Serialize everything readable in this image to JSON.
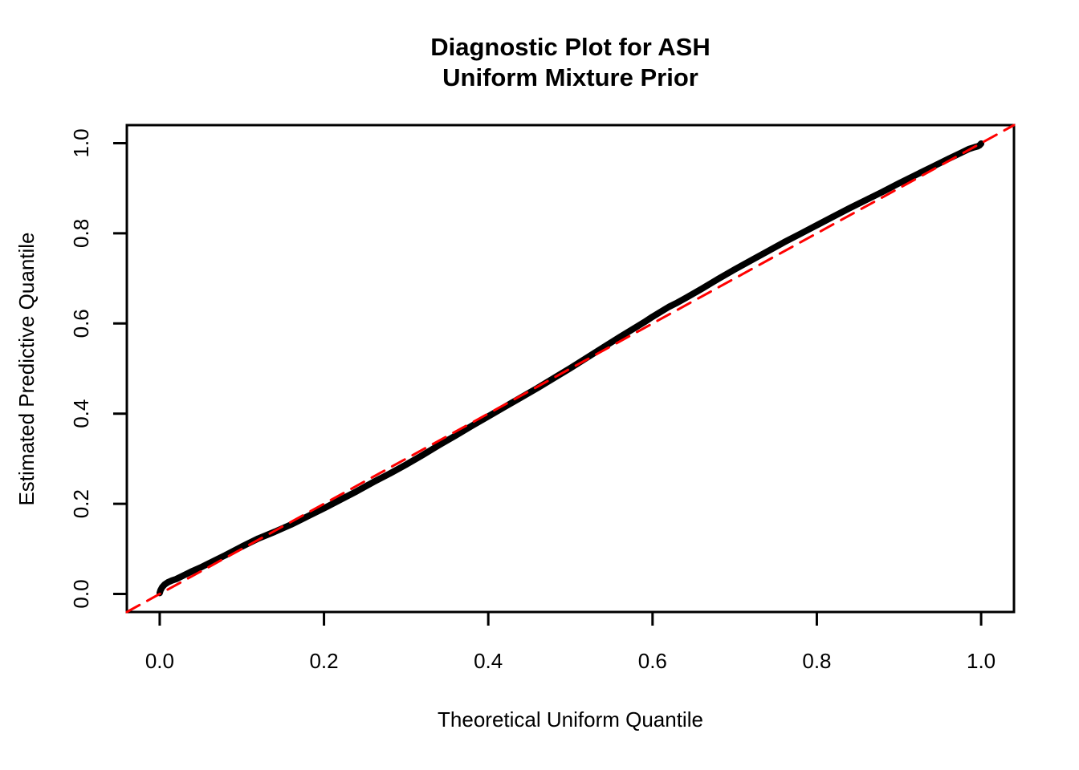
{
  "title": {
    "line1": "Diagnostic Plot for ASH",
    "line2": "Uniform Mixture Prior"
  },
  "chart_data": {
    "type": "line",
    "title": "Diagnostic Plot for ASH\nUniform Mixture Prior",
    "xlabel": "Theoretical Uniform Quantile",
    "ylabel": "Estimated Predictive Quantile",
    "xlim": [
      -0.04,
      1.04
    ],
    "ylim": [
      -0.04,
      1.04
    ],
    "grid": false,
    "legend": "none",
    "x_ticks": [
      "0.0",
      "0.2",
      "0.4",
      "0.6",
      "0.8",
      "1.0"
    ],
    "y_ticks": [
      "0.0",
      "0.2",
      "0.4",
      "0.6",
      "0.8",
      "1.0"
    ],
    "x_tick_values": [
      0.0,
      0.2,
      0.4,
      0.6,
      0.8,
      1.0
    ],
    "y_tick_values": [
      0.0,
      0.2,
      0.4,
      0.6,
      0.8,
      1.0
    ],
    "colors": {
      "curve": "#000000",
      "reference": "#FF0000",
      "frame": "#000000"
    },
    "series": [
      {
        "name": "estimated-predictive-quantile-curve",
        "style": "solid",
        "color": "#000000",
        "stroke_width": 8,
        "points": [
          [
            0.0,
            0.002
          ],
          [
            0.001,
            0.008
          ],
          [
            0.003,
            0.015
          ],
          [
            0.006,
            0.021
          ],
          [
            0.01,
            0.026
          ],
          [
            0.015,
            0.03
          ],
          [
            0.02,
            0.033
          ],
          [
            0.03,
            0.042
          ],
          [
            0.04,
            0.051
          ],
          [
            0.05,
            0.059
          ],
          [
            0.06,
            0.068
          ],
          [
            0.08,
            0.086
          ],
          [
            0.1,
            0.105
          ],
          [
            0.12,
            0.123
          ],
          [
            0.14,
            0.138
          ],
          [
            0.16,
            0.154
          ],
          [
            0.18,
            0.172
          ],
          [
            0.2,
            0.19
          ],
          [
            0.22,
            0.209
          ],
          [
            0.24,
            0.228
          ],
          [
            0.26,
            0.248
          ],
          [
            0.28,
            0.267
          ],
          [
            0.3,
            0.287
          ],
          [
            0.32,
            0.308
          ],
          [
            0.34,
            0.33
          ],
          [
            0.36,
            0.351
          ],
          [
            0.38,
            0.373
          ],
          [
            0.4,
            0.394
          ],
          [
            0.42,
            0.415
          ],
          [
            0.44,
            0.436
          ],
          [
            0.46,
            0.457
          ],
          [
            0.48,
            0.479
          ],
          [
            0.5,
            0.501
          ],
          [
            0.52,
            0.524
          ],
          [
            0.54,
            0.547
          ],
          [
            0.56,
            0.57
          ],
          [
            0.58,
            0.592
          ],
          [
            0.59,
            0.603
          ],
          [
            0.6,
            0.615
          ],
          [
            0.62,
            0.637
          ],
          [
            0.63,
            0.646
          ],
          [
            0.64,
            0.656
          ],
          [
            0.66,
            0.677
          ],
          [
            0.68,
            0.699
          ],
          [
            0.7,
            0.72
          ],
          [
            0.72,
            0.74
          ],
          [
            0.74,
            0.76
          ],
          [
            0.76,
            0.78
          ],
          [
            0.78,
            0.799
          ],
          [
            0.8,
            0.818
          ],
          [
            0.82,
            0.837
          ],
          [
            0.84,
            0.856
          ],
          [
            0.86,
            0.874
          ],
          [
            0.88,
            0.892
          ],
          [
            0.9,
            0.911
          ],
          [
            0.92,
            0.929
          ],
          [
            0.94,
            0.947
          ],
          [
            0.96,
            0.965
          ],
          [
            0.975,
            0.978
          ],
          [
            0.985,
            0.987
          ],
          [
            0.992,
            0.991
          ],
          [
            0.996,
            0.993
          ],
          [
            0.998,
            0.995
          ],
          [
            1.0,
            0.999
          ]
        ]
      },
      {
        "name": "reference-diagonal",
        "style": "dashed",
        "color": "#FF0000",
        "stroke_width": 3,
        "points": [
          [
            -0.04,
            -0.04
          ],
          [
            1.04,
            1.04
          ]
        ]
      }
    ]
  }
}
